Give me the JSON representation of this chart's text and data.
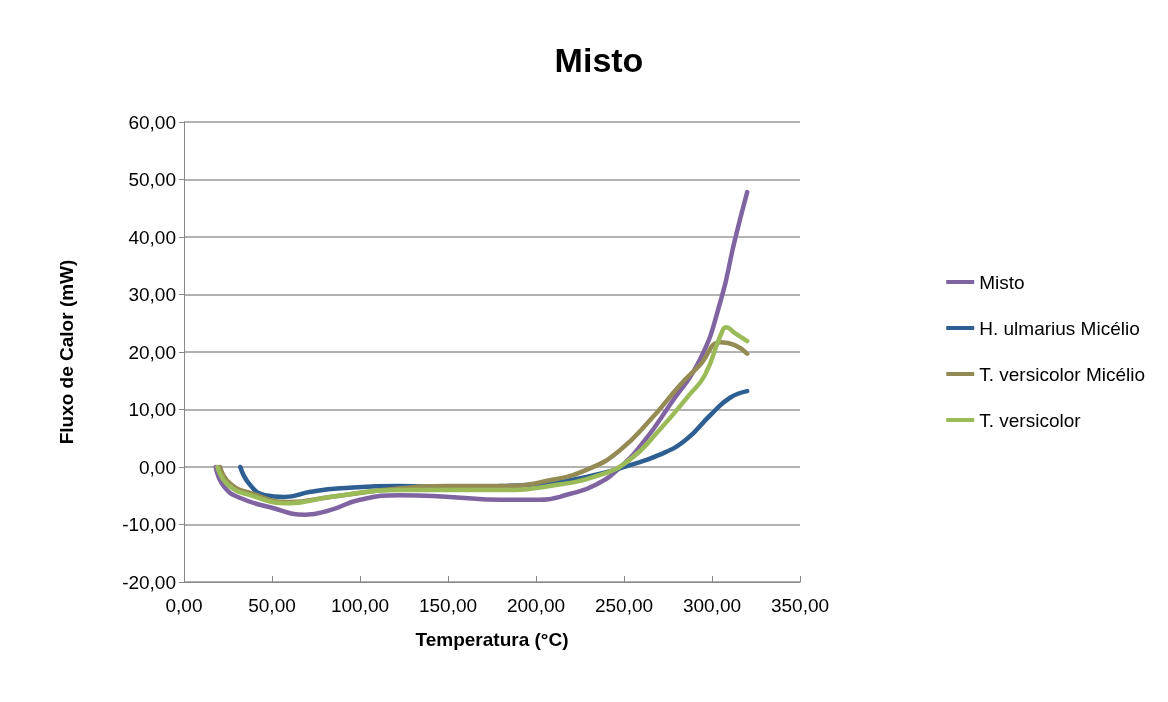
{
  "chart_data": {
    "type": "line",
    "title": "Misto",
    "xlabel": "Temperatura (°C)",
    "ylabel": "Fluxo de Calor (mW)",
    "xlim": [
      0,
      350
    ],
    "xticks": [
      {
        "value": 0,
        "label": "0,00"
      },
      {
        "value": 50,
        "label": "50,00"
      },
      {
        "value": 100,
        "label": "100,00"
      },
      {
        "value": 150,
        "label": "150,00"
      },
      {
        "value": 200,
        "label": "200,00"
      },
      {
        "value": 250,
        "label": "250,00"
      },
      {
        "value": 300,
        "label": "300,00"
      },
      {
        "value": 350,
        "label": "350,00"
      }
    ],
    "ylim": [
      -20,
      60
    ],
    "yticks": [
      {
        "value": -20,
        "label": "-20,00"
      },
      {
        "value": -10,
        "label": "-10,00"
      },
      {
        "value": 0,
        "label": "0,00"
      },
      {
        "value": 10,
        "label": "10,00"
      },
      {
        "value": 20,
        "label": "20,00"
      },
      {
        "value": 30,
        "label": "30,00"
      },
      {
        "value": 40,
        "label": "40,00"
      },
      {
        "value": 50,
        "label": "50,00"
      },
      {
        "value": 60,
        "label": "60,00"
      }
    ],
    "grid": "y",
    "legend": "right",
    "marker": "none",
    "line_style": "solid",
    "series": [
      {
        "name": "Misto",
        "color": "#8064a2",
        "x": [
          18,
          23,
          32,
          49,
          69,
          83,
          100,
          123,
          151,
          180,
          202,
          219,
          234,
          248,
          262,
          276,
          293,
          305,
          313,
          320
        ],
        "values": [
          0,
          -3.5,
          -5.4,
          -7,
          -8.3,
          -7.5,
          -5.7,
          -4.9,
          -5.2,
          -5.7,
          -5.7,
          -4.7,
          -3.1,
          0,
          4.7,
          10.8,
          18.6,
          29,
          39.5,
          47.8
        ]
      },
      {
        "name": "H. ulmarius Micélio",
        "color": "#2e5f93",
        "x": [
          32,
          37.5,
          46,
          57,
          72,
          89,
          123,
          151,
          180,
          208,
          236,
          253,
          270,
          285,
          299,
          310,
          320
        ],
        "values": [
          0,
          -3.1,
          -4.9,
          -5.2,
          -4.3,
          -3.7,
          -3.3,
          -3.5,
          -3.3,
          -2.8,
          -1.2,
          0.3,
          2.1,
          4.7,
          9,
          12,
          13.2
        ]
      },
      {
        "name": "T. versicolor Micélio",
        "color": "#948a54",
        "x": [
          20.5,
          26,
          37.5,
          60,
          83,
          123,
          151,
          180,
          208,
          231,
          248,
          265,
          282,
          293,
          305,
          313,
          320
        ],
        "values": [
          0,
          -2.8,
          -4.5,
          -6.1,
          -5.2,
          -3.7,
          -3.3,
          -3.3,
          -2.3,
          -0.2,
          3,
          8.2,
          14.3,
          17.7,
          21.7,
          21.2,
          19.7
        ]
      },
      {
        "name": "T. versicolor",
        "color": "#9bbb59",
        "x": [
          19,
          25,
          37.5,
          60,
          83,
          123,
          151,
          180,
          208,
          236,
          253,
          270,
          287,
          296,
          305,
          308,
          313,
          320
        ],
        "values": [
          0,
          -3.1,
          -4.9,
          -6.3,
          -5.2,
          -4,
          -4,
          -4,
          -3.3,
          -1.4,
          1.2,
          6.4,
          12.5,
          16,
          23,
          24.3,
          23.3,
          21.9
        ]
      }
    ]
  }
}
